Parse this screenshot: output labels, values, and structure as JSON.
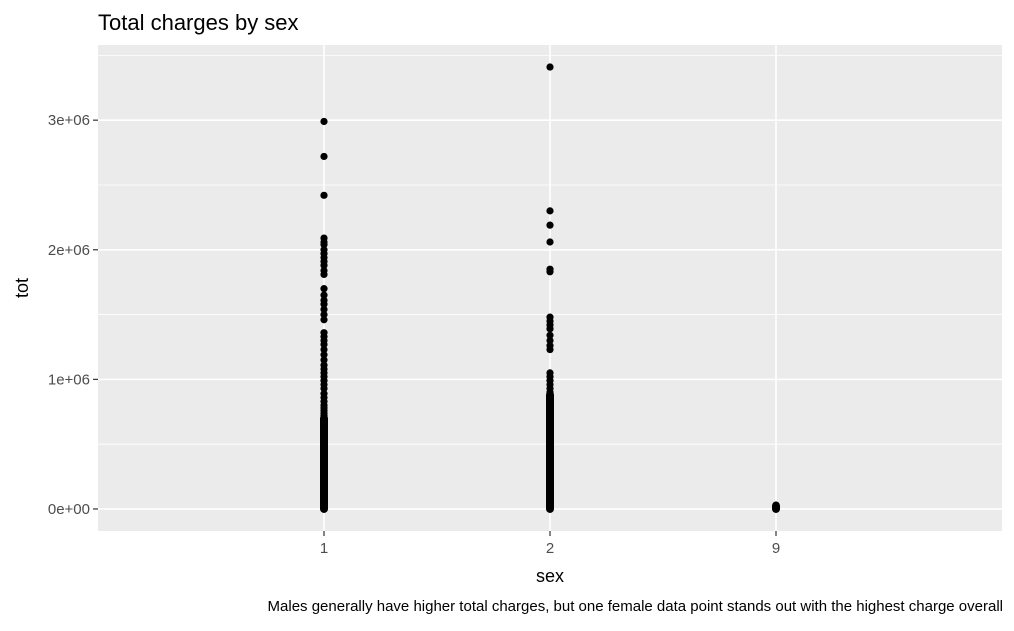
{
  "chart_data": {
    "type": "scatter",
    "title": "Total charges by sex",
    "xlabel": "sex",
    "ylabel": "tot",
    "caption": "Males generally have higher total charges, but one female data point stands out with the highest charge overall",
    "categories": [
      "1",
      "2",
      "9"
    ],
    "y_ticks": [
      {
        "value": 0,
        "label": "0e+00"
      },
      {
        "value": 1000000,
        "label": "1e+06"
      },
      {
        "value": 2000000,
        "label": "2e+06"
      },
      {
        "value": 3000000,
        "label": "3e+06"
      }
    ],
    "ylim": [
      -170000,
      3580000
    ],
    "grid": true,
    "legend": "none",
    "colors": {
      "panel": "#ebebeb",
      "grid": "#ffffff",
      "point": "#000000",
      "text": "#000000",
      "tick_label": "#4d4d4d"
    },
    "series": [
      {
        "category": "1",
        "dense_range": [
          0,
          700000
        ],
        "values": [
          2990000,
          2720000,
          2420000,
          2090000,
          2060000,
          2040000,
          2000000,
          1970000,
          1940000,
          1910000,
          1880000,
          1840000,
          1810000,
          1700000,
          1650000,
          1610000,
          1580000,
          1540000,
          1500000,
          1460000,
          1360000,
          1330000,
          1300000,
          1270000,
          1230000,
          1190000,
          1150000,
          1110000,
          1080000,
          1050000,
          1020000,
          990000,
          960000,
          930000,
          890000,
          860000,
          830000,
          800000,
          780000,
          760000,
          740000,
          720000
        ]
      },
      {
        "category": "2",
        "dense_range": [
          0,
          880000
        ],
        "values": [
          3410000,
          2300000,
          2190000,
          2060000,
          1850000,
          1830000,
          1480000,
          1450000,
          1420000,
          1390000,
          1340000,
          1300000,
          1260000,
          1230000,
          1050000,
          1020000,
          990000,
          960000,
          930000,
          900000
        ]
      },
      {
        "category": "9",
        "dense_range": [
          0,
          25000
        ],
        "values": [
          30000
        ]
      }
    ]
  }
}
